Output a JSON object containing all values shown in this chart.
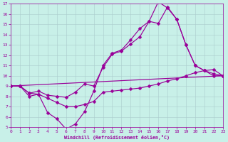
{
  "xlabel": "Windchill (Refroidissement éolien,°C)",
  "bg_color": "#c8f0e8",
  "line_color": "#990099",
  "grid_color": "#aacccc",
  "xlim": [
    0,
    23
  ],
  "ylim": [
    5,
    17
  ],
  "xticks": [
    0,
    1,
    2,
    3,
    4,
    5,
    6,
    7,
    8,
    9,
    10,
    11,
    12,
    13,
    14,
    15,
    16,
    17,
    18,
    19,
    20,
    21,
    22,
    23
  ],
  "yticks": [
    5,
    6,
    7,
    8,
    9,
    10,
    11,
    12,
    13,
    14,
    15,
    16,
    17
  ],
  "line1_y": [
    9.0,
    9.0,
    8.3,
    8.2,
    7.8,
    7.4,
    7.0,
    7.0,
    7.2,
    7.5,
    8.4,
    8.5,
    8.6,
    8.7,
    8.8,
    9.0,
    9.2,
    9.5,
    9.7,
    10.0,
    10.3,
    10.5,
    10.6,
    10.0
  ],
  "line2_y": [
    9.0,
    9.0,
    8.3,
    8.5,
    8.1,
    8.0,
    7.9,
    8.4,
    9.2,
    9.0,
    10.8,
    12.1,
    12.4,
    13.1,
    13.8,
    15.3,
    15.1,
    16.7,
    15.5,
    13.0,
    11.0,
    10.5,
    10.2,
    10.0
  ],
  "line3_y": [
    9.0,
    9.0,
    8.0,
    8.2,
    6.4,
    5.8,
    4.8,
    5.3,
    6.5,
    8.5,
    11.0,
    12.2,
    12.5,
    13.5,
    14.6,
    15.3,
    17.2,
    16.6,
    15.5,
    13.0,
    11.0,
    10.5,
    10.0,
    10.0
  ],
  "line4_x": [
    0,
    23
  ],
  "line4_y": [
    9.0,
    10.0
  ],
  "markersize": 2.5,
  "linewidth": 0.85
}
